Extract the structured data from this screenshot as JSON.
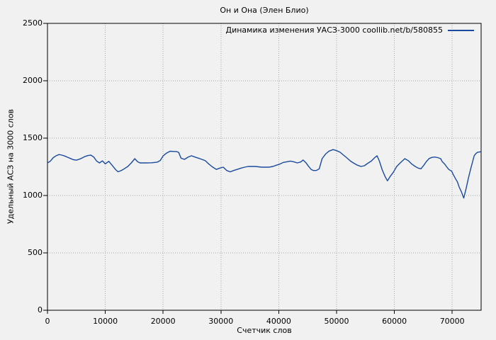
{
  "chart": {
    "title": "Он и Она (Элен Блио)",
    "legend_label": "Динамика изменения УАСЗ-3000 coollib.net/b/580855",
    "xlabel": "Счетчик слов",
    "ylabel": "Удельный АСЗ на 3000 слов"
  },
  "chart_data": {
    "type": "line",
    "title": "Он и Она (Элен Блио)",
    "xlabel": "Счетчик слов",
    "ylabel": "Удельный АСЗ на 3000 слов",
    "legend_entries": [
      "Динамика изменения УАСЗ-3000 coollib.net/b/580855"
    ],
    "legend_position": "top-right-inside",
    "grid": true,
    "xlim": [
      0,
      75000
    ],
    "ylim": [
      0,
      2500
    ],
    "xticks": [
      0,
      10000,
      20000,
      30000,
      40000,
      50000,
      60000,
      70000
    ],
    "yticks": [
      0,
      500,
      1000,
      1500,
      2000,
      2500
    ],
    "colors": {
      "line": "#1a4a9e",
      "background": "#f1f1f1",
      "grid": "#a8a8a8",
      "axis": "#000000"
    },
    "series": [
      {
        "name": "Динамика изменения УАСЗ-3000 coollib.net/b/580855",
        "points": [
          [
            0,
            1283
          ],
          [
            500,
            1300
          ],
          [
            1000,
            1330
          ],
          [
            1500,
            1346
          ],
          [
            2000,
            1357
          ],
          [
            2500,
            1352
          ],
          [
            3000,
            1344
          ],
          [
            3500,
            1333
          ],
          [
            4000,
            1322
          ],
          [
            4500,
            1312
          ],
          [
            5000,
            1308
          ],
          [
            5500,
            1316
          ],
          [
            6000,
            1327
          ],
          [
            6500,
            1340
          ],
          [
            7000,
            1348
          ],
          [
            7500,
            1352
          ],
          [
            8000,
            1335
          ],
          [
            8500,
            1300
          ],
          [
            9000,
            1284
          ],
          [
            9500,
            1302
          ],
          [
            10000,
            1275
          ],
          [
            10600,
            1298
          ],
          [
            11200,
            1262
          ],
          [
            11800,
            1225
          ],
          [
            12200,
            1207
          ],
          [
            12700,
            1216
          ],
          [
            13100,
            1227
          ],
          [
            13900,
            1253
          ],
          [
            14500,
            1284
          ],
          [
            15100,
            1321
          ],
          [
            15600,
            1294
          ],
          [
            16000,
            1284
          ],
          [
            17000,
            1284
          ],
          [
            18000,
            1285
          ],
          [
            19000,
            1291
          ],
          [
            19500,
            1305
          ],
          [
            20000,
            1345
          ],
          [
            20600,
            1370
          ],
          [
            21200,
            1386
          ],
          [
            21800,
            1384
          ],
          [
            22400,
            1382
          ],
          [
            22700,
            1375
          ],
          [
            23100,
            1325
          ],
          [
            23700,
            1315
          ],
          [
            24300,
            1334
          ],
          [
            24900,
            1346
          ],
          [
            25500,
            1335
          ],
          [
            26100,
            1325
          ],
          [
            26700,
            1315
          ],
          [
            27300,
            1303
          ],
          [
            27900,
            1274
          ],
          [
            28500,
            1250
          ],
          [
            29200,
            1227
          ],
          [
            29800,
            1239
          ],
          [
            30400,
            1247
          ],
          [
            31000,
            1218
          ],
          [
            31600,
            1206
          ],
          [
            32200,
            1218
          ],
          [
            32800,
            1227
          ],
          [
            33500,
            1239
          ],
          [
            34100,
            1247
          ],
          [
            34700,
            1253
          ],
          [
            35900,
            1253
          ],
          [
            37100,
            1247
          ],
          [
            38300,
            1247
          ],
          [
            39000,
            1253
          ],
          [
            39600,
            1264
          ],
          [
            40200,
            1274
          ],
          [
            40800,
            1288
          ],
          [
            41400,
            1294
          ],
          [
            42000,
            1300
          ],
          [
            42600,
            1294
          ],
          [
            43200,
            1284
          ],
          [
            43800,
            1292
          ],
          [
            44200,
            1309
          ],
          [
            44700,
            1285
          ],
          [
            45100,
            1258
          ],
          [
            45600,
            1227
          ],
          [
            46000,
            1218
          ],
          [
            46500,
            1218
          ],
          [
            47000,
            1232
          ],
          [
            47500,
            1321
          ],
          [
            48100,
            1362
          ],
          [
            48700,
            1387
          ],
          [
            49400,
            1400
          ],
          [
            50000,
            1391
          ],
          [
            50600,
            1377
          ],
          [
            51200,
            1352
          ],
          [
            51800,
            1327
          ],
          [
            52400,
            1300
          ],
          [
            53000,
            1281
          ],
          [
            53600,
            1264
          ],
          [
            54200,
            1253
          ],
          [
            54800,
            1259
          ],
          [
            55400,
            1281
          ],
          [
            56000,
            1300
          ],
          [
            56600,
            1330
          ],
          [
            57000,
            1346
          ],
          [
            57400,
            1300
          ],
          [
            57900,
            1222
          ],
          [
            58400,
            1165
          ],
          [
            58800,
            1128
          ],
          [
            59300,
            1168
          ],
          [
            59800,
            1202
          ],
          [
            60400,
            1253
          ],
          [
            61000,
            1284
          ],
          [
            61800,
            1321
          ],
          [
            62400,
            1304
          ],
          [
            63000,
            1274
          ],
          [
            63600,
            1253
          ],
          [
            64100,
            1239
          ],
          [
            64600,
            1233
          ],
          [
            65100,
            1264
          ],
          [
            65500,
            1294
          ],
          [
            66000,
            1322
          ],
          [
            66500,
            1332
          ],
          [
            67000,
            1335
          ],
          [
            67500,
            1330
          ],
          [
            68000,
            1321
          ],
          [
            68300,
            1294
          ],
          [
            68700,
            1274
          ],
          [
            69000,
            1253
          ],
          [
            69400,
            1227
          ],
          [
            69900,
            1212
          ],
          [
            70200,
            1181
          ],
          [
            70600,
            1144
          ],
          [
            70900,
            1119
          ],
          [
            71200,
            1074
          ],
          [
            71600,
            1030
          ],
          [
            72000,
            978
          ],
          [
            72400,
            1060
          ],
          [
            72800,
            1150
          ],
          [
            73200,
            1233
          ],
          [
            73500,
            1290
          ],
          [
            73800,
            1346
          ],
          [
            74100,
            1366
          ],
          [
            74400,
            1377
          ],
          [
            74900,
            1381
          ]
        ]
      }
    ]
  }
}
